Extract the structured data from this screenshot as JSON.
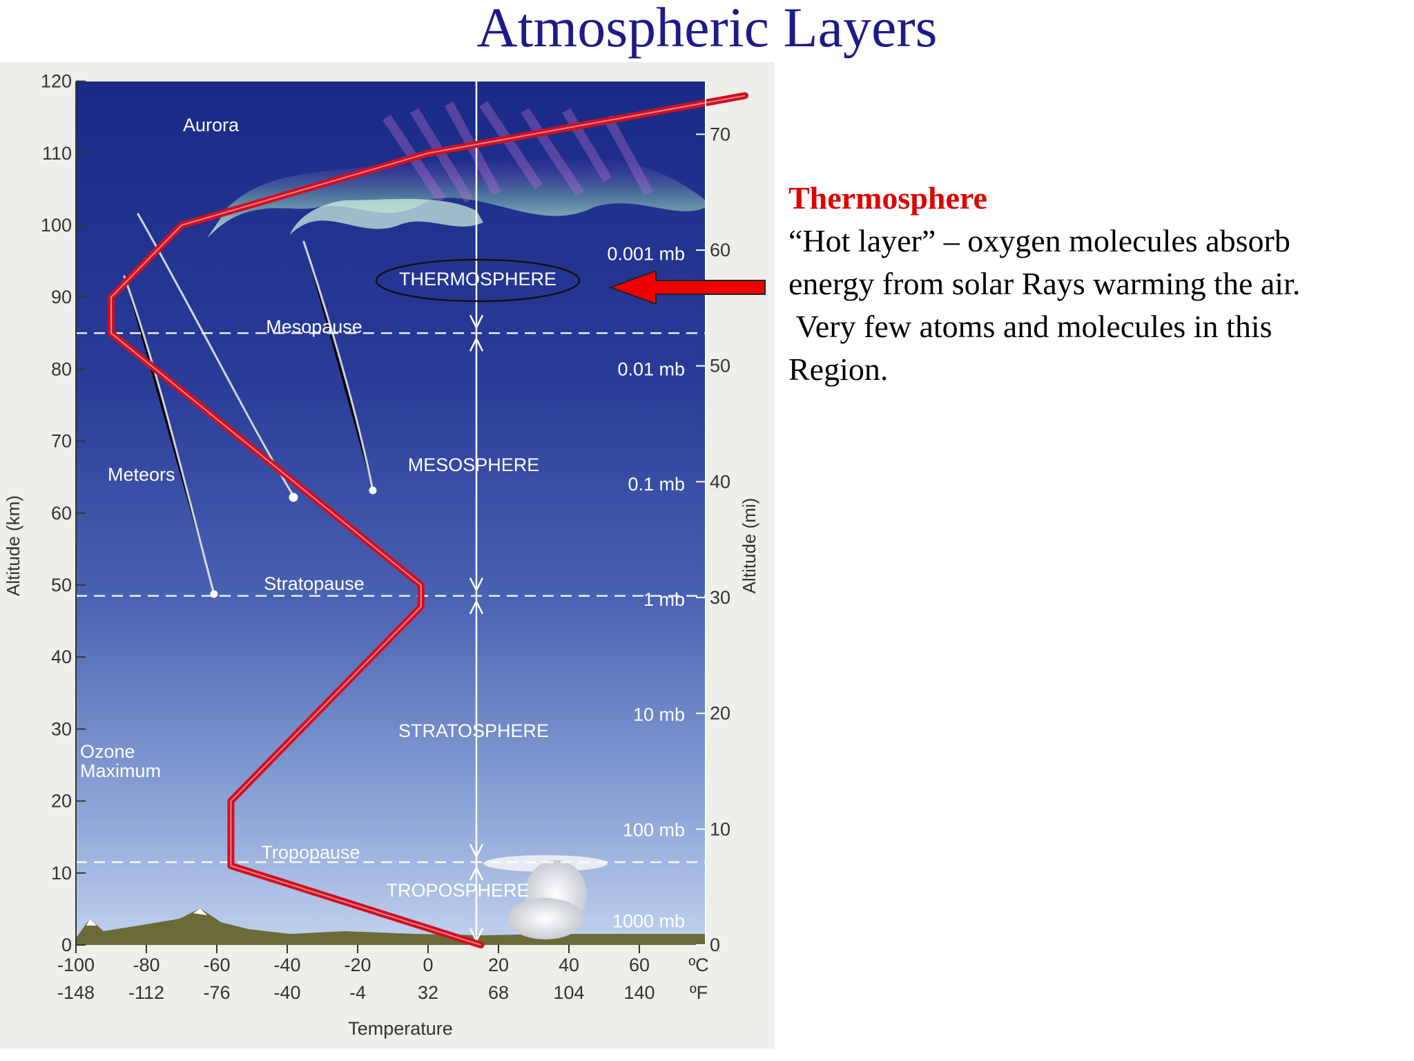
{
  "title": "Atmospheric Layers",
  "description": {
    "heading": "Thermosphere",
    "lines": [
      "“Hot layer” – oxygen molecules absorb",
      "energy from solar Rays warming the air.",
      " Very few atoms and molecules in this",
      "Region."
    ]
  },
  "diagram": {
    "y_axis_left": {
      "label": "Altitude (km)",
      "ticks": [
        "0",
        "10",
        "20",
        "30",
        "40",
        "50",
        "60",
        "70",
        "80",
        "90",
        "100",
        "110",
        "120"
      ]
    },
    "y_axis_right": {
      "label": "Altitude (mi)",
      "ticks": [
        "0",
        "10",
        "20",
        "30",
        "40",
        "50",
        "60",
        "70"
      ]
    },
    "x_axis": {
      "label": "Temperature",
      "celsius_ticks": [
        "-100",
        "-80",
        "-60",
        "-40",
        "-20",
        "0",
        "20",
        "40",
        "60"
      ],
      "fahrenheit_ticks": [
        "-148",
        "-112",
        "-76",
        "-40",
        "-4",
        "32",
        "68",
        "104",
        "140"
      ],
      "celsius_unit": "ºC",
      "fahrenheit_unit": "ºF"
    },
    "layers": [
      "THERMOSPHERE",
      "MESOSPHERE",
      "STRATOSPHERE",
      "TROPOSPHERE"
    ],
    "boundaries": [
      "Mesopause",
      "Stratopause",
      "Tropopause"
    ],
    "pressures": [
      "0.001 mb",
      "0.01 mb",
      "0.1 mb",
      "1 mb",
      "10 mb",
      "100 mb",
      "1000 mb"
    ],
    "annotations": [
      "Aurora",
      "Meteors",
      "Ozone",
      "Maximum"
    ],
    "temperature_profile_km_c": [
      [
        0,
        15
      ],
      [
        11,
        -56
      ],
      [
        20,
        -56
      ],
      [
        47,
        -2
      ],
      [
        50,
        -2
      ],
      [
        85,
        -90
      ],
      [
        90,
        -90
      ],
      [
        100,
        -70
      ],
      [
        110,
        0
      ],
      [
        118,
        90
      ]
    ],
    "colors": {
      "curve": "#cc1122",
      "arrow": "#ee0000",
      "title": "#1b1b8a",
      "sky_top": "#1a2a86",
      "sky_bottom": "#b8cbe8"
    }
  }
}
